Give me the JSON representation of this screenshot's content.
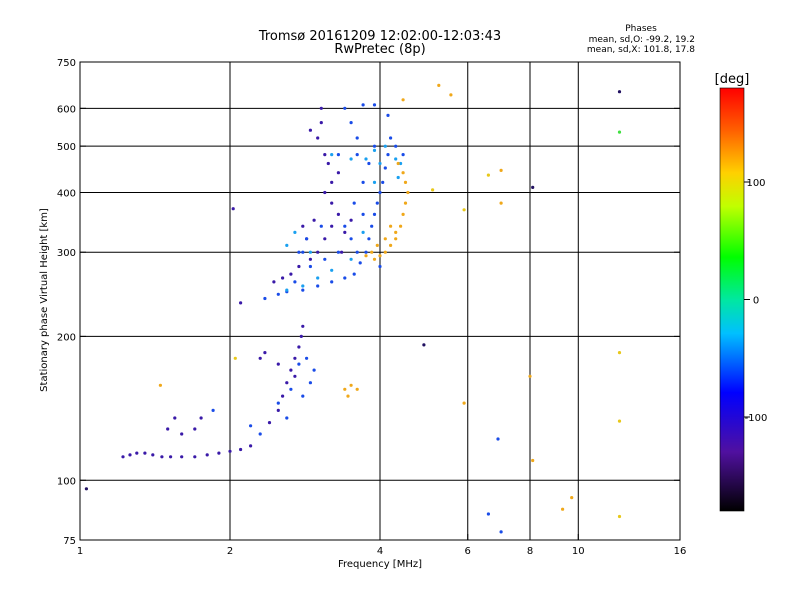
{
  "chart_data": {
    "type": "scatter",
    "title": "Tromsø 20161209 12:02:00-12:03:43",
    "subtitle": "RwPretec (8p)",
    "xlabel": "Frequency [MHz]",
    "ylabel": "Stationary phase Virtual Height [km]",
    "x_scale": "log",
    "y_scale": "log",
    "xlim": [
      1,
      16
    ],
    "ylim": [
      75,
      750
    ],
    "x_ticks": [
      1,
      2,
      4,
      6,
      8,
      10,
      16
    ],
    "x_tick_labels": [
      "1",
      "2",
      "4",
      "6",
      "8",
      "10",
      "16"
    ],
    "x_gridlines": [
      2,
      4,
      6,
      8,
      10
    ],
    "y_ticks": [
      75,
      100,
      200,
      300,
      400,
      500,
      600,
      750
    ],
    "y_tick_labels": [
      "75",
      "100",
      "200",
      "300",
      "400",
      "500",
      "600",
      "750"
    ],
    "y_gridlines": [
      100,
      200,
      300,
      400,
      500,
      600
    ],
    "grid": true,
    "info": {
      "header": "Phases",
      "line_o": "mean, sd,O: -99.2, 19.2",
      "line_x": "mean, sd,X: 101.8, 17.8"
    },
    "colorbar": {
      "label": "[deg]",
      "range": [
        -180,
        180
      ],
      "ticks": [
        100,
        0,
        -100
      ],
      "tick_labels": [
        "100",
        "0",
        "-100"
      ],
      "position": "right"
    },
    "series": [
      {
        "color": "#3a1aa8",
        "points": [
          [
            1.22,
            112
          ],
          [
            1.26,
            113
          ],
          [
            1.3,
            114
          ],
          [
            1.35,
            114
          ],
          [
            1.4,
            113
          ],
          [
            1.46,
            112
          ],
          [
            1.52,
            112
          ],
          [
            1.6,
            112
          ],
          [
            1.7,
            112
          ],
          [
            1.8,
            113
          ],
          [
            1.9,
            114
          ],
          [
            2.0,
            115
          ],
          [
            2.1,
            116
          ],
          [
            2.2,
            118
          ],
          [
            1.6,
            125
          ],
          [
            1.7,
            128
          ],
          [
            1.75,
            135
          ],
          [
            1.5,
            128
          ],
          [
            1.55,
            135
          ],
          [
            2.4,
            132
          ],
          [
            2.5,
            140
          ],
          [
            2.55,
            150
          ],
          [
            2.6,
            160
          ],
          [
            2.65,
            170
          ],
          [
            2.7,
            180
          ],
          [
            2.75,
            190
          ],
          [
            2.78,
            200
          ],
          [
            2.8,
            210
          ],
          [
            2.7,
            165
          ],
          [
            2.5,
            175
          ],
          [
            2.3,
            180
          ],
          [
            2.35,
            185
          ],
          [
            2.03,
            370
          ],
          [
            2.45,
            260
          ],
          [
            2.55,
            265
          ],
          [
            2.65,
            270
          ],
          [
            2.75,
            280
          ],
          [
            2.9,
            290
          ],
          [
            3.0,
            300
          ],
          [
            3.1,
            320
          ],
          [
            3.2,
            340
          ],
          [
            3.3,
            360
          ],
          [
            3.2,
            380
          ],
          [
            3.1,
            400
          ],
          [
            3.2,
            420
          ],
          [
            3.3,
            440
          ],
          [
            3.15,
            460
          ],
          [
            3.1,
            480
          ],
          [
            3.0,
            520
          ],
          [
            3.05,
            560
          ],
          [
            3.05,
            600
          ],
          [
            2.85,
            320
          ],
          [
            2.8,
            340
          ],
          [
            2.95,
            350
          ],
          [
            3.4,
            330
          ],
          [
            3.5,
            350
          ],
          [
            3.35,
            300
          ],
          [
            2.9,
            540
          ],
          [
            2.1,
            235
          ]
        ]
      },
      {
        "color": "#1a4ce8",
        "points": [
          [
            2.3,
            125
          ],
          [
            2.5,
            145
          ],
          [
            2.65,
            155
          ],
          [
            2.75,
            175
          ],
          [
            2.85,
            180
          ],
          [
            2.95,
            170
          ],
          [
            2.9,
            160
          ],
          [
            2.8,
            150
          ],
          [
            2.6,
            135
          ],
          [
            2.2,
            130
          ],
          [
            1.85,
            140
          ],
          [
            2.35,
            240
          ],
          [
            2.5,
            245
          ],
          [
            2.6,
            248
          ],
          [
            2.8,
            250
          ],
          [
            3.0,
            255
          ],
          [
            3.2,
            260
          ],
          [
            3.4,
            265
          ],
          [
            3.55,
            270
          ],
          [
            3.65,
            285
          ],
          [
            3.75,
            300
          ],
          [
            3.8,
            320
          ],
          [
            3.85,
            340
          ],
          [
            3.9,
            360
          ],
          [
            3.95,
            380
          ],
          [
            4.0,
            400
          ],
          [
            4.05,
            420
          ],
          [
            4.1,
            450
          ],
          [
            4.15,
            480
          ],
          [
            4.2,
            520
          ],
          [
            4.3,
            500
          ],
          [
            4.45,
            480
          ],
          [
            3.6,
            300
          ],
          [
            3.5,
            320
          ],
          [
            3.4,
            340
          ],
          [
            3.3,
            300
          ],
          [
            3.1,
            290
          ],
          [
            2.9,
            280
          ],
          [
            2.7,
            260
          ],
          [
            2.8,
            300
          ],
          [
            2.85,
            320
          ],
          [
            3.05,
            340
          ],
          [
            3.55,
            380
          ],
          [
            3.7,
            420
          ],
          [
            3.8,
            460
          ],
          [
            3.9,
            500
          ],
          [
            3.6,
            520
          ],
          [
            3.5,
            560
          ],
          [
            3.4,
            600
          ],
          [
            3.7,
            610
          ],
          [
            3.9,
            610
          ],
          [
            4.15,
            580
          ],
          [
            3.6,
            480
          ],
          [
            3.3,
            480
          ],
          [
            2.75,
            300
          ],
          [
            3.7,
            360
          ],
          [
            4.0,
            280
          ],
          [
            6.6,
            85
          ],
          [
            6.9,
            122
          ],
          [
            7.0,
            78
          ]
        ]
      },
      {
        "color": "#1aa0f0",
        "points": [
          [
            2.6,
            250
          ],
          [
            2.8,
            255
          ],
          [
            3.0,
            265
          ],
          [
            3.2,
            275
          ],
          [
            3.5,
            290
          ],
          [
            3.7,
            330
          ],
          [
            3.9,
            420
          ],
          [
            4.0,
            460
          ],
          [
            4.1,
            500
          ],
          [
            4.3,
            470
          ],
          [
            4.4,
            460
          ],
          [
            4.35,
            430
          ],
          [
            3.9,
            490
          ],
          [
            3.75,
            470
          ],
          [
            3.5,
            470
          ],
          [
            3.2,
            480
          ],
          [
            2.7,
            330
          ],
          [
            2.6,
            310
          ],
          [
            2.9,
            300
          ]
        ]
      },
      {
        "color": "#f0a81a",
        "points": [
          [
            3.9,
            290
          ],
          [
            4.0,
            295
          ],
          [
            4.1,
            300
          ],
          [
            4.2,
            310
          ],
          [
            4.3,
            320
          ],
          [
            4.4,
            340
          ],
          [
            4.45,
            360
          ],
          [
            4.5,
            380
          ],
          [
            4.55,
            400
          ],
          [
            4.5,
            420
          ],
          [
            4.45,
            440
          ],
          [
            4.35,
            460
          ],
          [
            4.3,
            330
          ],
          [
            4.2,
            340
          ],
          [
            4.1,
            320
          ],
          [
            3.95,
            310
          ],
          [
            3.85,
            300
          ],
          [
            3.75,
            295
          ],
          [
            3.4,
            155
          ],
          [
            3.5,
            158
          ],
          [
            3.6,
            155
          ],
          [
            3.45,
            150
          ],
          [
            4.45,
            625
          ],
          [
            5.25,
            670
          ],
          [
            5.55,
            640
          ],
          [
            7.0,
            445
          ],
          [
            7.0,
            380
          ],
          [
            8.1,
            110
          ],
          [
            9.3,
            87
          ],
          [
            9.7,
            92
          ],
          [
            5.9,
            145
          ],
          [
            1.45,
            158
          ],
          [
            8.0,
            165
          ]
        ]
      },
      {
        "color": "#e8c81a",
        "points": [
          [
            5.9,
            368
          ],
          [
            6.6,
            435
          ],
          [
            12.1,
            185
          ],
          [
            12.1,
            133
          ],
          [
            12.1,
            84
          ],
          [
            5.1,
            405
          ],
          [
            2.05,
            180
          ]
        ]
      },
      {
        "color": "#40e040",
        "points": [
          [
            12.1,
            535
          ]
        ]
      },
      {
        "color": "#201060",
        "points": [
          [
            1.03,
            96
          ],
          [
            4.9,
            192
          ],
          [
            8.1,
            410
          ],
          [
            12.1,
            650
          ]
        ]
      }
    ]
  }
}
